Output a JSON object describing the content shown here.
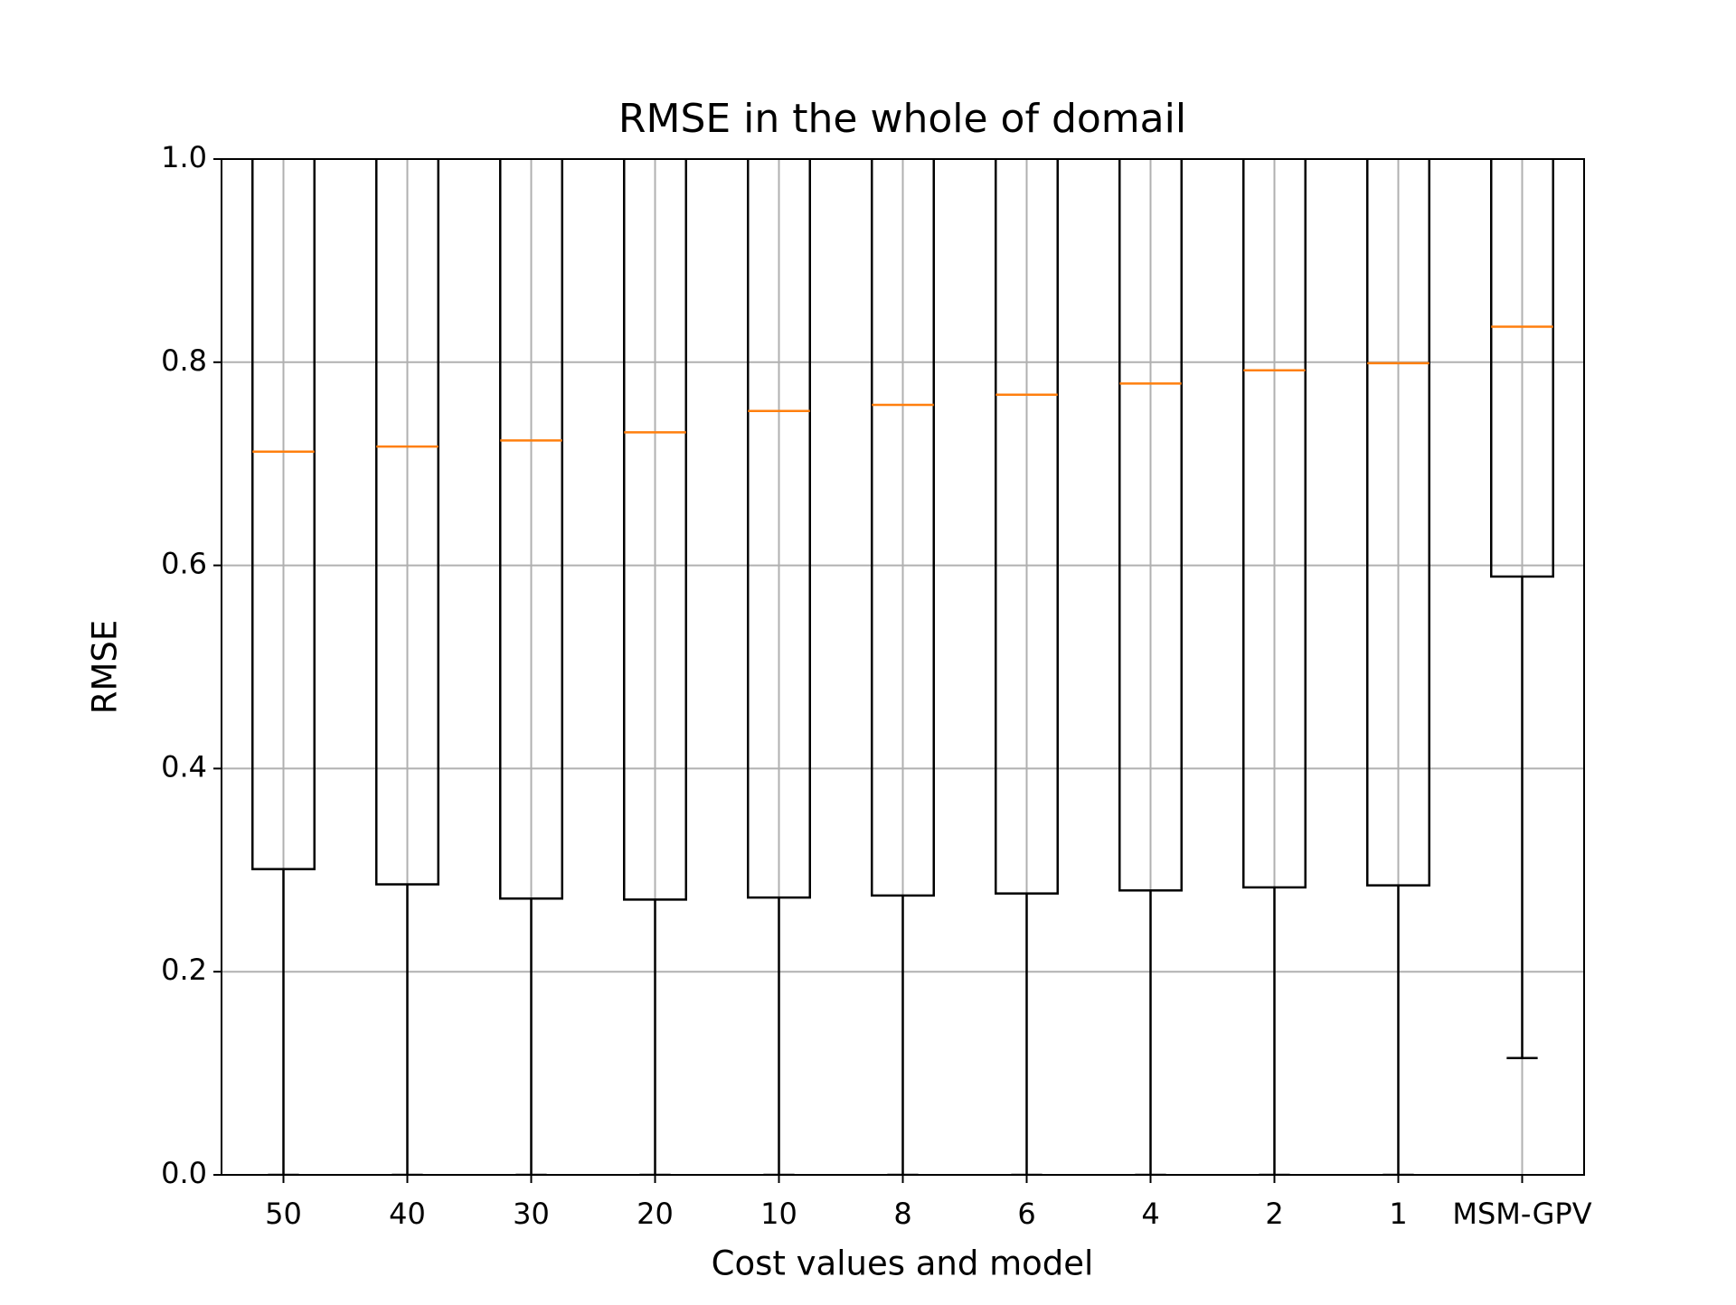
{
  "chart_data": {
    "type": "box",
    "title": "RMSE in the whole of domail",
    "x_label": "Cost values and model",
    "y_label": "RMSE",
    "categories": [
      "50",
      "40",
      "30",
      "20",
      "10",
      "8",
      "6",
      "4",
      "2",
      "1",
      "MSM-GPV"
    ],
    "boxes": [
      {
        "whisker_low": 0,
        "q1": 0.301,
        "median": 0.712
      },
      {
        "whisker_low": 0,
        "q1": 0.286,
        "median": 0.717
      },
      {
        "whisker_low": 0,
        "q1": 0.272,
        "median": 0.723
      },
      {
        "whisker_low": 0,
        "q1": 0.271,
        "median": 0.731
      },
      {
        "whisker_low": 0,
        "q1": 0.273,
        "median": 0.752
      },
      {
        "whisker_low": 0,
        "q1": 0.275,
        "median": 0.758
      },
      {
        "whisker_low": 0,
        "q1": 0.277,
        "median": 0.768
      },
      {
        "whisker_low": 0,
        "q1": 0.28,
        "median": 0.779
      },
      {
        "whisker_low": 0,
        "q1": 0.283,
        "median": 0.792
      },
      {
        "whisker_low": 0,
        "q1": 0.285,
        "median": 0.799
      },
      {
        "whisker_low": 0.115,
        "q1": 0.589,
        "median": 0.835
      }
    ],
    "ylim": [
      0,
      1
    ],
    "yticks": [
      {
        "value": 0,
        "label": "0.0"
      },
      0.2,
      0.4,
      0.6,
      0.8,
      {
        "value": 1,
        "label": "1.0"
      }
    ],
    "grid": true,
    "box_color": "#000000",
    "median_color": "#ff7f0e",
    "grid_color": "#b0b0b0"
  }
}
